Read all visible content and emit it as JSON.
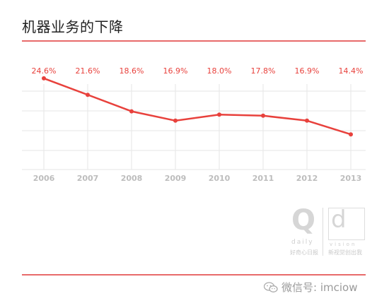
{
  "title": "机器业务的下降",
  "chart_data": {
    "type": "line",
    "title": "机器业务的下降",
    "categories": [
      "2006",
      "2007",
      "2008",
      "2009",
      "2010",
      "2011",
      "2012",
      "2013"
    ],
    "values": [
      24.6,
      21.6,
      18.6,
      16.9,
      18.0,
      17.8,
      16.9,
      14.4
    ],
    "data_labels": [
      "24.6%",
      "21.6%",
      "18.6%",
      "16.9%",
      "18.0%",
      "17.8%",
      "16.9%",
      "14.4%"
    ],
    "ylim": [
      8,
      26
    ],
    "grid": true,
    "colors": {
      "line": "#e8413c",
      "label": "#e8413c",
      "grid": "#e6e6e6",
      "tick": "#bdbdbd"
    }
  },
  "logo": {
    "q": "Q",
    "q_sub": "daily",
    "q_cn": "好奇心日报",
    "d": "d",
    "d_sub": "vision",
    "d_cn": "新视觉创出我"
  },
  "footer": {
    "icon": "wechat-icon",
    "text": "微信号: imciow"
  }
}
